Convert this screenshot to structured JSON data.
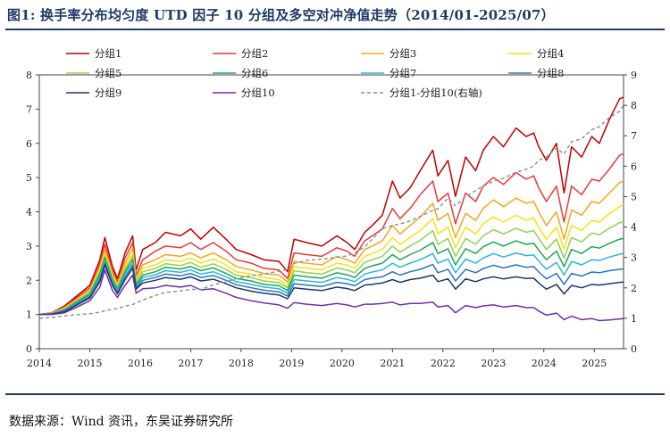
{
  "title": "图1:  换手率分布均匀度 UTD 因子 10 分组及多空对冲净值走势（2014/01-2025/07）",
  "source": "数据来源：Wind 资讯，东吴证券研究所",
  "colors": {
    "title": "#1f3a68",
    "rule": "#1f3a68",
    "axis": "#444444"
  },
  "chart_data": {
    "type": "line",
    "title": "",
    "xlabel": "",
    "ylabel": "",
    "y2label": "",
    "ylim": [
      0,
      8
    ],
    "y2lim": [
      0,
      9
    ],
    "xlim": [
      2014.0,
      2025.58
    ],
    "x_ticks": [
      "2014",
      "2015",
      "2016",
      "2017",
      "2018",
      "2019",
      "2020",
      "2021",
      "2022",
      "2023",
      "2024",
      "2025"
    ],
    "y_ticks": [
      "0",
      "1",
      "2",
      "3",
      "4",
      "5",
      "6",
      "7",
      "8"
    ],
    "y2_ticks": [
      "0",
      "1",
      "2",
      "3",
      "4",
      "5",
      "6",
      "7",
      "8",
      "9"
    ],
    "legend_position": "top",
    "x": [
      2014.0,
      2014.25,
      2014.5,
      2014.75,
      2015.0,
      2015.2,
      2015.3,
      2015.45,
      2015.55,
      2015.7,
      2015.85,
      2015.92,
      2016.05,
      2016.3,
      2016.5,
      2016.8,
      2017.0,
      2017.2,
      2017.45,
      2017.7,
      2017.9,
      2018.2,
      2018.45,
      2018.75,
      2018.92,
      2019.05,
      2019.3,
      2019.6,
      2019.9,
      2020.1,
      2020.25,
      2020.45,
      2020.6,
      2020.8,
      2021.0,
      2021.15,
      2021.35,
      2021.55,
      2021.8,
      2021.9,
      2022.1,
      2022.25,
      2022.45,
      2022.65,
      2022.8,
      2023.0,
      2023.2,
      2023.45,
      2023.65,
      2023.8,
      2023.9,
      2024.05,
      2024.25,
      2024.4,
      2024.55,
      2024.75,
      2024.95,
      2025.1,
      2025.3,
      2025.5,
      2025.58
    ],
    "series": [
      {
        "name": "分组1",
        "color": "#c00000",
        "dash": false,
        "axis": "left",
        "values": [
          1.0,
          1.05,
          1.25,
          1.55,
          1.85,
          2.6,
          3.25,
          2.4,
          2.05,
          2.8,
          3.3,
          2.3,
          2.9,
          3.1,
          3.4,
          3.3,
          3.5,
          3.2,
          3.55,
          3.2,
          2.9,
          2.75,
          2.6,
          2.55,
          2.25,
          3.2,
          3.1,
          3.0,
          3.3,
          3.1,
          2.9,
          3.4,
          3.6,
          3.9,
          4.9,
          4.4,
          4.7,
          5.2,
          5.8,
          5.05,
          5.5,
          4.45,
          5.6,
          5.2,
          5.8,
          6.2,
          5.9,
          6.45,
          6.2,
          6.3,
          5.9,
          5.5,
          6.0,
          4.55,
          5.9,
          5.6,
          6.2,
          6.0,
          6.7,
          7.3,
          7.35
        ]
      },
      {
        "name": "分组2",
        "color": "#e83a3a",
        "dash": false,
        "axis": "left",
        "values": [
          1.0,
          1.04,
          1.22,
          1.5,
          1.78,
          2.5,
          3.05,
          2.3,
          1.95,
          2.65,
          3.1,
          2.15,
          2.6,
          2.85,
          3.0,
          2.95,
          3.1,
          2.9,
          3.1,
          2.85,
          2.6,
          2.5,
          2.35,
          2.3,
          2.05,
          2.8,
          2.75,
          2.7,
          2.95,
          2.85,
          2.7,
          3.15,
          3.3,
          3.5,
          4.1,
          3.8,
          4.1,
          4.5,
          4.9,
          4.3,
          4.55,
          3.65,
          4.55,
          4.3,
          4.75,
          5.0,
          4.8,
          5.15,
          4.95,
          5.05,
          4.7,
          4.3,
          4.75,
          3.7,
          4.75,
          4.5,
          4.95,
          4.9,
          5.25,
          5.65,
          5.7
        ]
      },
      {
        "name": "分组3",
        "color": "#f0a820",
        "dash": false,
        "axis": "left",
        "values": [
          1.0,
          1.04,
          1.2,
          1.45,
          1.72,
          2.4,
          2.9,
          2.2,
          1.9,
          2.5,
          2.95,
          2.05,
          2.45,
          2.6,
          2.75,
          2.7,
          2.8,
          2.65,
          2.8,
          2.6,
          2.4,
          2.3,
          2.2,
          2.15,
          1.95,
          2.55,
          2.5,
          2.45,
          2.7,
          2.6,
          2.5,
          2.9,
          3.0,
          3.15,
          3.6,
          3.35,
          3.6,
          3.85,
          4.25,
          3.75,
          3.95,
          3.25,
          3.95,
          3.75,
          4.1,
          4.35,
          4.15,
          4.4,
          4.25,
          4.3,
          4.0,
          3.6,
          4.0,
          3.2,
          4.05,
          3.9,
          4.3,
          4.25,
          4.55,
          4.85,
          4.9
        ]
      },
      {
        "name": "分组4",
        "color": "#f5e21a",
        "dash": false,
        "axis": "left",
        "values": [
          1.0,
          1.03,
          1.18,
          1.42,
          1.68,
          2.32,
          2.8,
          2.12,
          1.85,
          2.4,
          2.8,
          1.98,
          2.35,
          2.45,
          2.6,
          2.55,
          2.65,
          2.5,
          2.62,
          2.45,
          2.25,
          2.18,
          2.08,
          2.02,
          1.85,
          2.4,
          2.35,
          2.3,
          2.5,
          2.45,
          2.35,
          2.7,
          2.78,
          2.9,
          3.25,
          3.05,
          3.25,
          3.45,
          3.8,
          3.35,
          3.55,
          2.95,
          3.55,
          3.35,
          3.65,
          3.85,
          3.7,
          3.9,
          3.75,
          3.82,
          3.55,
          3.2,
          3.55,
          2.9,
          3.6,
          3.45,
          3.75,
          3.7,
          3.95,
          4.15,
          4.2
        ]
      },
      {
        "name": "分组5",
        "color": "#92d050",
        "dash": false,
        "axis": "left",
        "values": [
          1.0,
          1.03,
          1.16,
          1.4,
          1.64,
          2.25,
          2.72,
          2.06,
          1.8,
          2.32,
          2.7,
          1.92,
          2.25,
          2.35,
          2.48,
          2.43,
          2.52,
          2.38,
          2.48,
          2.32,
          2.15,
          2.08,
          1.98,
          1.93,
          1.78,
          2.28,
          2.22,
          2.18,
          2.36,
          2.3,
          2.22,
          2.52,
          2.6,
          2.7,
          3.0,
          2.82,
          3.0,
          3.17,
          3.45,
          3.05,
          3.22,
          2.7,
          3.22,
          3.05,
          3.3,
          3.48,
          3.35,
          3.52,
          3.4,
          3.45,
          3.22,
          2.9,
          3.2,
          2.65,
          3.25,
          3.12,
          3.38,
          3.33,
          3.52,
          3.68,
          3.7
        ]
      },
      {
        "name": "分组6",
        "color": "#1fa84f",
        "dash": false,
        "axis": "left",
        "values": [
          1.0,
          1.02,
          1.14,
          1.37,
          1.6,
          2.18,
          2.65,
          2.0,
          1.75,
          2.25,
          2.6,
          1.87,
          2.15,
          2.25,
          2.38,
          2.33,
          2.4,
          2.28,
          2.36,
          2.2,
          2.05,
          1.98,
          1.88,
          1.84,
          1.7,
          2.15,
          2.1,
          2.06,
          2.22,
          2.16,
          2.08,
          2.35,
          2.42,
          2.5,
          2.75,
          2.6,
          2.75,
          2.88,
          3.1,
          2.78,
          2.92,
          2.45,
          2.92,
          2.78,
          2.98,
          3.12,
          3.0,
          3.15,
          3.05,
          3.08,
          2.88,
          2.6,
          2.85,
          2.4,
          2.9,
          2.78,
          2.98,
          2.94,
          3.08,
          3.2,
          3.22
        ]
      },
      {
        "name": "分组7",
        "color": "#2fb4e0",
        "dash": false,
        "axis": "left",
        "values": [
          1.0,
          1.02,
          1.12,
          1.34,
          1.56,
          2.1,
          2.58,
          1.95,
          1.7,
          2.18,
          2.5,
          1.82,
          2.08,
          2.16,
          2.28,
          2.23,
          2.3,
          2.18,
          2.25,
          2.1,
          1.96,
          1.88,
          1.8,
          1.75,
          1.62,
          2.02,
          1.98,
          1.94,
          2.08,
          2.03,
          1.96,
          2.18,
          2.24,
          2.3,
          2.5,
          2.38,
          2.5,
          2.6,
          2.78,
          2.5,
          2.62,
          2.22,
          2.62,
          2.5,
          2.65,
          2.78,
          2.68,
          2.8,
          2.72,
          2.74,
          2.56,
          2.32,
          2.52,
          2.15,
          2.55,
          2.45,
          2.6,
          2.58,
          2.68,
          2.76,
          2.78
        ]
      },
      {
        "name": "分组8",
        "color": "#2e75b6",
        "dash": false,
        "axis": "left",
        "values": [
          1.0,
          1.02,
          1.1,
          1.31,
          1.52,
          2.03,
          2.5,
          1.9,
          1.65,
          2.1,
          2.42,
          1.78,
          2.0,
          2.08,
          2.18,
          2.13,
          2.2,
          2.08,
          2.14,
          2.0,
          1.87,
          1.78,
          1.71,
          1.66,
          1.54,
          1.9,
          1.86,
          1.82,
          1.94,
          1.9,
          1.84,
          2.02,
          2.06,
          2.1,
          2.25,
          2.15,
          2.25,
          2.32,
          2.46,
          2.22,
          2.32,
          1.98,
          2.32,
          2.22,
          2.34,
          2.44,
          2.36,
          2.45,
          2.38,
          2.4,
          2.24,
          2.04,
          2.2,
          1.88,
          2.2,
          2.12,
          2.24,
          2.22,
          2.28,
          2.32,
          2.33
        ]
      },
      {
        "name": "分组9",
        "color": "#1f3864",
        "dash": false,
        "axis": "left",
        "values": [
          1.0,
          1.01,
          1.08,
          1.28,
          1.48,
          1.96,
          2.45,
          1.85,
          1.6,
          2.02,
          2.35,
          1.74,
          1.92,
          2.0,
          2.08,
          2.03,
          2.1,
          1.98,
          2.03,
          1.9,
          1.78,
          1.68,
          1.62,
          1.57,
          1.46,
          1.78,
          1.74,
          1.7,
          1.8,
          1.76,
          1.7,
          1.86,
          1.88,
          1.92,
          2.02,
          1.94,
          2.02,
          2.06,
          2.15,
          1.96,
          2.04,
          1.74,
          2.04,
          1.96,
          2.04,
          2.1,
          2.04,
          2.1,
          2.05,
          2.06,
          1.92,
          1.74,
          1.88,
          1.6,
          1.85,
          1.78,
          1.88,
          1.86,
          1.9,
          1.94,
          1.95
        ]
      },
      {
        "name": "分组10",
        "color": "#7030a0",
        "dash": false,
        "axis": "left",
        "values": [
          1.0,
          1.0,
          1.05,
          1.22,
          1.4,
          1.8,
          2.3,
          1.7,
          1.5,
          1.85,
          2.15,
          1.62,
          1.75,
          1.78,
          1.85,
          1.8,
          1.85,
          1.72,
          1.75,
          1.62,
          1.5,
          1.4,
          1.34,
          1.28,
          1.18,
          1.35,
          1.3,
          1.26,
          1.32,
          1.28,
          1.22,
          1.3,
          1.3,
          1.32,
          1.36,
          1.28,
          1.32,
          1.32,
          1.36,
          1.22,
          1.26,
          1.05,
          1.26,
          1.2,
          1.25,
          1.28,
          1.22,
          1.26,
          1.2,
          1.2,
          1.1,
          0.98,
          1.04,
          0.85,
          0.95,
          0.85,
          0.88,
          0.82,
          0.84,
          0.87,
          0.88
        ]
      },
      {
        "name": "分组1-分组10(右轴)",
        "color": "#8c8c8c",
        "dash": true,
        "axis": "right",
        "values": [
          1.0,
          1.03,
          1.08,
          1.12,
          1.15,
          1.2,
          1.25,
          1.3,
          1.32,
          1.4,
          1.45,
          1.5,
          1.6,
          1.75,
          1.85,
          1.9,
          1.95,
          1.95,
          2.1,
          2.2,
          2.3,
          2.4,
          2.45,
          2.55,
          2.6,
          2.8,
          2.9,
          2.95,
          3.0,
          3.05,
          3.15,
          3.35,
          3.6,
          3.95,
          4.05,
          4.1,
          4.2,
          4.35,
          4.55,
          4.6,
          4.95,
          4.7,
          5.0,
          5.2,
          5.35,
          5.5,
          5.6,
          5.8,
          5.9,
          6.0,
          6.2,
          6.3,
          6.6,
          6.4,
          6.8,
          6.9,
          7.2,
          7.3,
          7.6,
          7.8,
          8.0
        ]
      }
    ]
  }
}
